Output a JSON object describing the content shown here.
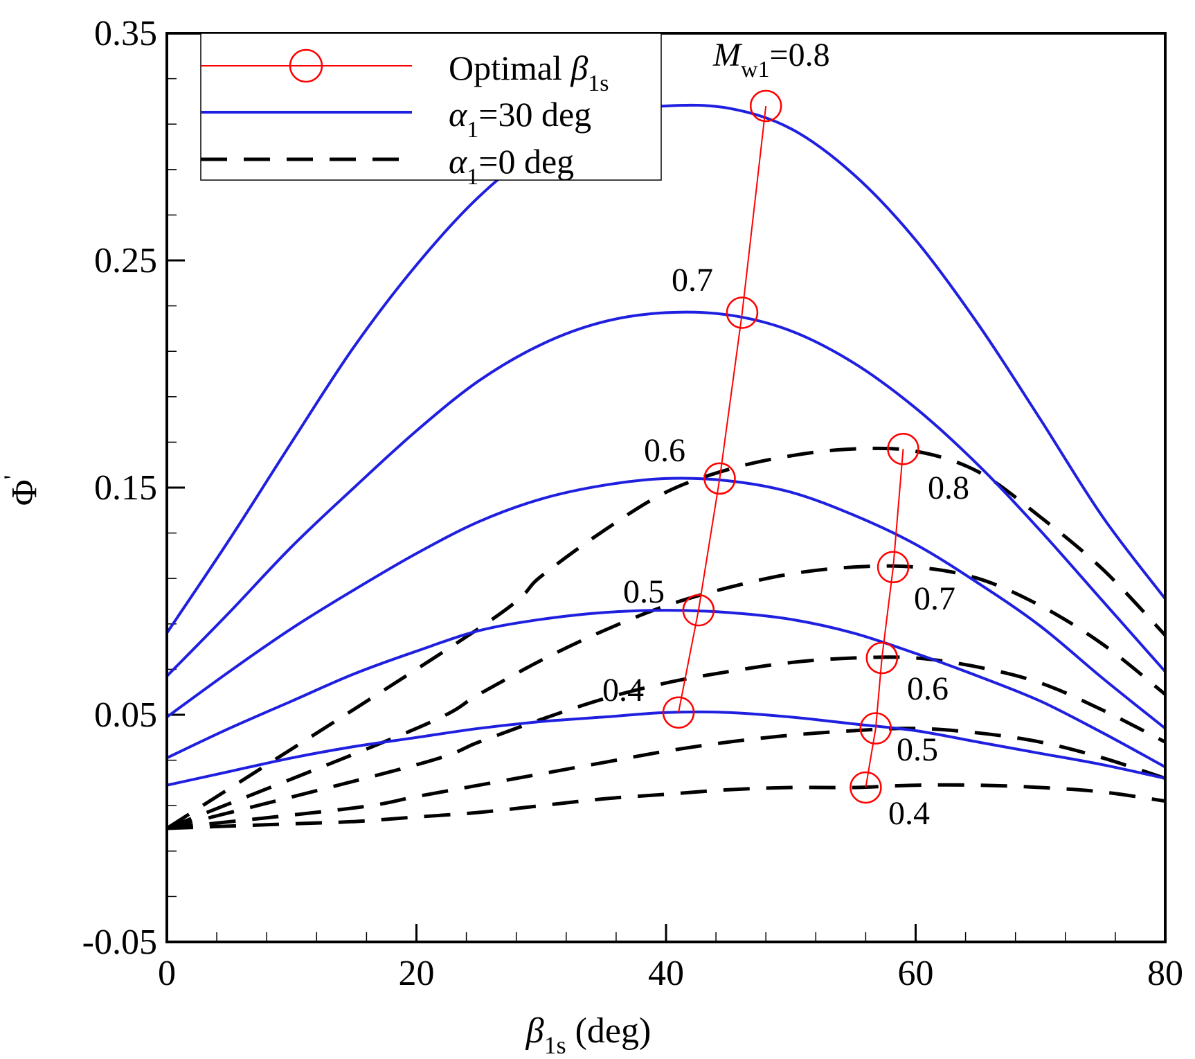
{
  "chart_data": {
    "type": "line",
    "title": "",
    "xlabel": {
      "symbol": "β",
      "sub": "1s",
      "unit": " (deg)"
    },
    "ylabel": {
      "symbol": "Φ",
      "sup": "'"
    },
    "xlim": [
      0,
      80
    ],
    "ylim": [
      -0.05,
      0.35
    ],
    "xticks": [
      0,
      20,
      40,
      60,
      80
    ],
    "xtick_labels": [
      "0",
      "20",
      "40",
      "60",
      "80"
    ],
    "yticks": [
      -0.05,
      0.05,
      0.15,
      0.25,
      0.35
    ],
    "ytick_labels": [
      "-0.05",
      "0.05",
      "0.15",
      "0.25",
      "0.35"
    ],
    "grid": false,
    "legend": {
      "position": "top-left",
      "entries": [
        {
          "key": "optimal",
          "text": "Optimal ",
          "symbol": "β",
          "sub": "1s",
          "suffix": ""
        },
        {
          "key": "alpha30",
          "text": "",
          "symbol": "α",
          "sub": "1",
          "suffix": "=30 deg"
        },
        {
          "key": "alpha0",
          "text": "",
          "symbol": "α",
          "sub": "1",
          "suffix": "=0 deg"
        }
      ]
    },
    "colors": {
      "alpha30": "#1f1fe0",
      "alpha0": "#000000",
      "optimal": "#ff0000"
    },
    "mach_label": {
      "symbol": "M",
      "sub": "w1",
      "suffix": "=0.8"
    },
    "x": [
      0,
      5,
      10,
      15,
      20,
      25,
      30,
      35,
      40,
      45,
      50,
      55,
      60,
      65,
      70,
      75,
      80
    ],
    "series_alpha30": [
      {
        "name": "0.4",
        "values": [
          0.019,
          0.025,
          0.031,
          0.036,
          0.04,
          0.044,
          0.047,
          0.049,
          0.051,
          0.051,
          0.049,
          0.046,
          0.043,
          0.038,
          0.033,
          0.028,
          0.022
        ]
      },
      {
        "name": "0.5",
        "values": [
          0.031,
          0.044,
          0.056,
          0.068,
          0.078,
          0.087,
          0.092,
          0.095,
          0.096,
          0.095,
          0.092,
          0.086,
          0.077,
          0.067,
          0.056,
          0.042,
          0.027
        ]
      },
      {
        "name": "0.6",
        "values": [
          0.049,
          0.069,
          0.088,
          0.105,
          0.121,
          0.135,
          0.145,
          0.151,
          0.154,
          0.153,
          0.148,
          0.138,
          0.125,
          0.108,
          0.089,
          0.066,
          0.044
        ]
      },
      {
        "name": "0.7",
        "values": [
          0.067,
          0.095,
          0.124,
          0.15,
          0.175,
          0.197,
          0.213,
          0.223,
          0.227,
          0.226,
          0.219,
          0.205,
          0.185,
          0.16,
          0.131,
          0.1,
          0.069
        ]
      },
      {
        "name": "0.8",
        "values": [
          0.086,
          0.127,
          0.17,
          0.212,
          0.248,
          0.278,
          0.3,
          0.314,
          0.318,
          0.317,
          0.308,
          0.288,
          0.259,
          0.222,
          0.18,
          0.137,
          0.101
        ]
      }
    ],
    "series_alpha0": [
      {
        "name": "0.4",
        "start": 8,
        "values": [
          0.0,
          0.001,
          0.002,
          0.003,
          0.005,
          0.007,
          0.01,
          0.013,
          0.015,
          0.017,
          0.018,
          0.018,
          0.019,
          0.019,
          0.018,
          0.016,
          0.012
        ]
      },
      {
        "name": "0.5",
        "start": 12,
        "values": [
          0.0,
          0.002,
          0.005,
          0.009,
          0.014,
          0.019,
          0.024,
          0.029,
          0.034,
          0.038,
          0.041,
          0.043,
          0.044,
          0.042,
          0.038,
          0.031,
          0.022
        ]
      },
      {
        "name": "0.6",
        "start": 16,
        "values": [
          0.0,
          0.004,
          0.01,
          0.018,
          0.028,
          0.038,
          0.048,
          0.057,
          0.064,
          0.069,
          0.073,
          0.075,
          0.075,
          0.071,
          0.064,
          0.052,
          0.038
        ]
      },
      {
        "name": "0.7",
        "start": 20,
        "values": [
          0.0,
          0.006,
          0.016,
          0.029,
          0.044,
          0.059,
          0.074,
          0.087,
          0.098,
          0.106,
          0.112,
          0.115,
          0.115,
          0.11,
          0.098,
          0.081,
          0.059
        ]
      },
      {
        "name": "0.8",
        "start": 24,
        "values": [
          0.0,
          0.009,
          0.023,
          0.042,
          0.065,
          0.088,
          0.111,
          0.131,
          0.148,
          0.158,
          0.164,
          0.167,
          0.166,
          0.157,
          0.137,
          0.114,
          0.085
        ]
      }
    ],
    "optimal_alpha30": {
      "x": [
        41.0,
        42.6,
        44.3,
        46.1,
        48.0
      ],
      "y": [
        0.051,
        0.096,
        0.154,
        0.227,
        0.318
      ]
    },
    "optimal_alpha0": {
      "x": [
        56.0,
        56.8,
        57.3,
        58.2,
        59.0
      ],
      "y": [
        0.018,
        0.044,
        0.075,
        0.115,
        0.167
      ]
    },
    "curve_labels_alpha30": [
      "0.4",
      "0.5",
      "0.6",
      "0.7"
    ],
    "curve_labels_alpha0": [
      "0.4",
      "0.5",
      "0.6",
      "0.7",
      "0.8"
    ]
  }
}
